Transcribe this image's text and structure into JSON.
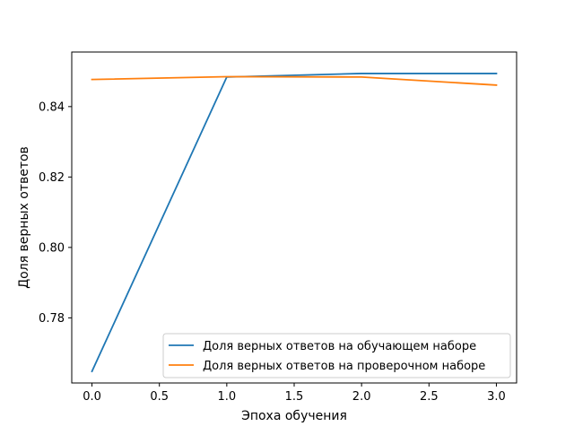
{
  "chart_data": {
    "type": "line",
    "title": "",
    "xlabel": "Эпоха обучения",
    "ylabel": "Доля верных ответов",
    "xlim": [
      -0.15,
      3.15
    ],
    "ylim": [
      0.7615,
      0.8555
    ],
    "xticks": [
      0.0,
      0.5,
      1.0,
      1.5,
      2.0,
      2.5,
      3.0
    ],
    "xtick_labels": [
      "0.0",
      "0.5",
      "1.0",
      "1.5",
      "2.0",
      "2.5",
      "3.0"
    ],
    "yticks": [
      0.78,
      0.8,
      0.82,
      0.84
    ],
    "ytick_labels": [
      "0.78",
      "0.80",
      "0.82",
      "0.84"
    ],
    "grid": false,
    "legend_position": "lower right",
    "series": [
      {
        "name": "Доля верных ответов на обучающем наборе",
        "color": "#1f77b4",
        "x": [
          0,
          1,
          2,
          3
        ],
        "y": [
          0.7648,
          0.8484,
          0.8494,
          0.8494
        ]
      },
      {
        "name": "Доля верных ответов на проверочном наборе",
        "color": "#ff7f0e",
        "x": [
          0,
          1,
          2,
          3
        ],
        "y": [
          0.8477,
          0.8485,
          0.8484,
          0.8461
        ]
      }
    ]
  }
}
